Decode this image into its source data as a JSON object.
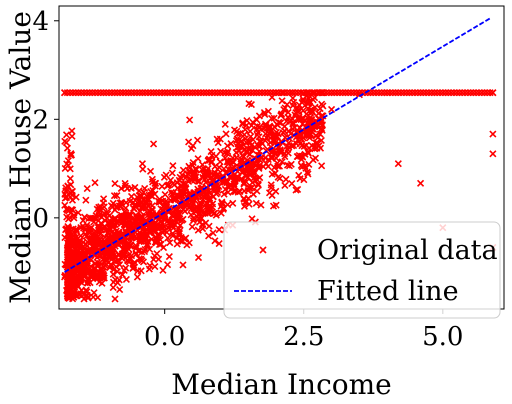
{
  "chart_data": {
    "type": "scatter",
    "title": "",
    "xlabel": "Median Income",
    "ylabel": "Median House Value",
    "xlim": [
      -1.9,
      6.1
    ],
    "ylim": [
      -1.85,
      4.3
    ],
    "xticks": [
      0.0,
      2.5,
      5.0
    ],
    "xtick_labels": [
      "0.0",
      "2.5",
      "5.0"
    ],
    "yticks": [
      0,
      2,
      4
    ],
    "ytick_labels": [
      "0",
      "2",
      "4"
    ],
    "grid": false,
    "legend_position": "bottom-right",
    "series": [
      {
        "name": "Original data",
        "kind": "scatter",
        "marker": "x",
        "color": "#ff0000",
        "description_shape": "dense cloud from about (-1.8,-1.6) up to (3,2.5), with saturated row at y=2.54 across x from -1.8 to 5.9",
        "cap_value": 2.54,
        "sample_points": [
          [
            -1.8,
            -1.2
          ],
          [
            -1.6,
            -0.9
          ],
          [
            -1.4,
            -1.5
          ],
          [
            -1.2,
            -0.5
          ],
          [
            -1.0,
            -0.2
          ],
          [
            -0.8,
            0.3
          ],
          [
            -0.6,
            0.6
          ],
          [
            -0.4,
            1.1
          ],
          [
            -0.2,
            1.5
          ],
          [
            0.0,
            0.2
          ],
          [
            0.3,
            0.8
          ],
          [
            0.6,
            1.2
          ],
          [
            1.0,
            1.6
          ],
          [
            1.4,
            1.9
          ],
          [
            1.8,
            2.1
          ],
          [
            2.2,
            2.3
          ],
          [
            2.6,
            2.0
          ],
          [
            3.0,
            2.2
          ],
          [
            3.5,
            2.5
          ],
          [
            4.2,
            1.1
          ],
          [
            4.6,
            0.7
          ],
          [
            5.0,
            -0.2
          ],
          [
            5.9,
            1.7
          ],
          [
            5.9,
            1.3
          ],
          [
            5.9,
            -0.6
          ],
          [
            -1.8,
            2.54
          ],
          [
            0.0,
            2.54
          ],
          [
            2.0,
            2.54
          ],
          [
            4.0,
            2.54
          ],
          [
            5.9,
            2.54
          ]
        ]
      },
      {
        "name": "Fitted line",
        "kind": "line",
        "style": "dashed",
        "color": "#0000ff",
        "x": [
          -1.8,
          5.85
        ],
        "y": [
          -1.1,
          4.05
        ]
      }
    ]
  }
}
